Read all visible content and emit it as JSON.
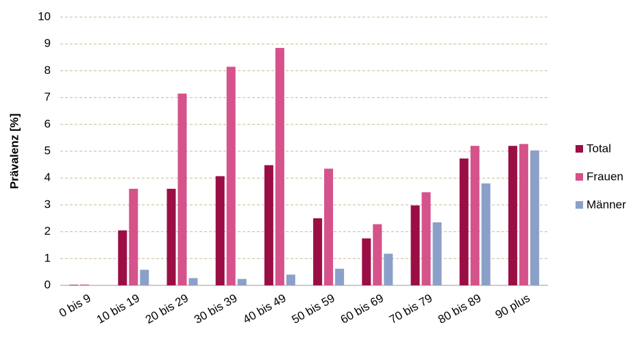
{
  "chart_data": {
    "type": "bar",
    "y_label": "Prävalenz [%]",
    "categories": [
      "0 bis 9",
      "10 bis 19",
      "20 bis 29",
      "30 bis 39",
      "40 bis 49",
      "50 bis 59",
      "60 bis 69",
      "70 bis 79",
      "80 bis 89",
      "90 plus"
    ],
    "series": [
      {
        "name": "Total",
        "color": "#9b0e45",
        "values": [
          0.02,
          2.05,
          3.6,
          4.07,
          4.48,
          2.5,
          1.75,
          2.98,
          4.73,
          5.2
        ]
      },
      {
        "name": "Frauen",
        "color": "#d5528a",
        "values": [
          0.03,
          3.6,
          7.15,
          8.15,
          8.85,
          4.35,
          2.28,
          3.47,
          5.2,
          5.27
        ]
      },
      {
        "name": "Männer",
        "color": "#8ba0c9",
        "values": [
          0,
          0.58,
          0.27,
          0.24,
          0.4,
          0.62,
          1.18,
          2.35,
          3.8,
          5.03
        ]
      }
    ],
    "ylim": [
      0,
      10
    ],
    "yticks": [
      0,
      1,
      2,
      3,
      4,
      5,
      6,
      7,
      8,
      9,
      10
    ],
    "grid": true,
    "legend": "right"
  }
}
